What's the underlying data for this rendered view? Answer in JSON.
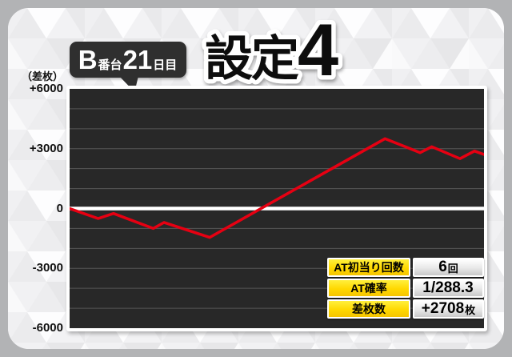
{
  "title": {
    "main": "設定",
    "number": "4"
  },
  "bubble": {
    "machine": "B",
    "machine_suffix": "番台",
    "day": "21",
    "day_suffix": "日目"
  },
  "axis": {
    "unit": "（差枚）",
    "ticks": [
      "+6000",
      "+3000",
      "0",
      "-3000",
      "-6000"
    ]
  },
  "stats": {
    "rows": [
      {
        "label": "AT初当り回数",
        "value": "6",
        "value_suffix": "回"
      },
      {
        "label": "AT確率",
        "value": "1/288.3",
        "value_suffix": ""
      },
      {
        "label": "差枚数",
        "value": "+2708",
        "value_suffix": "枚"
      }
    ]
  },
  "chart_data": {
    "type": "line",
    "title": "設定4",
    "series_label": "B番台21日目",
    "xlabel": "",
    "ylabel": "差枚",
    "ylim": [
      -6000,
      6000
    ],
    "yticks": [
      "+6000",
      "+3000",
      "0",
      "-3000",
      "-6000"
    ],
    "y_gridline_interval": 1000,
    "grid": true,
    "background": "#282828",
    "line_color": "#e60012",
    "zero_line_color": "#ffffff",
    "final_value": 2708,
    "points": [
      {
        "x": 0.0,
        "y": 0
      },
      {
        "x": 0.069,
        "y": -500
      },
      {
        "x": 0.106,
        "y": -250
      },
      {
        "x": 0.202,
        "y": -1000
      },
      {
        "x": 0.228,
        "y": -700
      },
      {
        "x": 0.338,
        "y": -1450
      },
      {
        "x": 0.761,
        "y": 3500
      },
      {
        "x": 0.846,
        "y": 2800
      },
      {
        "x": 0.874,
        "y": 3100
      },
      {
        "x": 0.942,
        "y": 2500
      },
      {
        "x": 0.977,
        "y": 2880
      },
      {
        "x": 1.0,
        "y": 2708
      }
    ]
  }
}
